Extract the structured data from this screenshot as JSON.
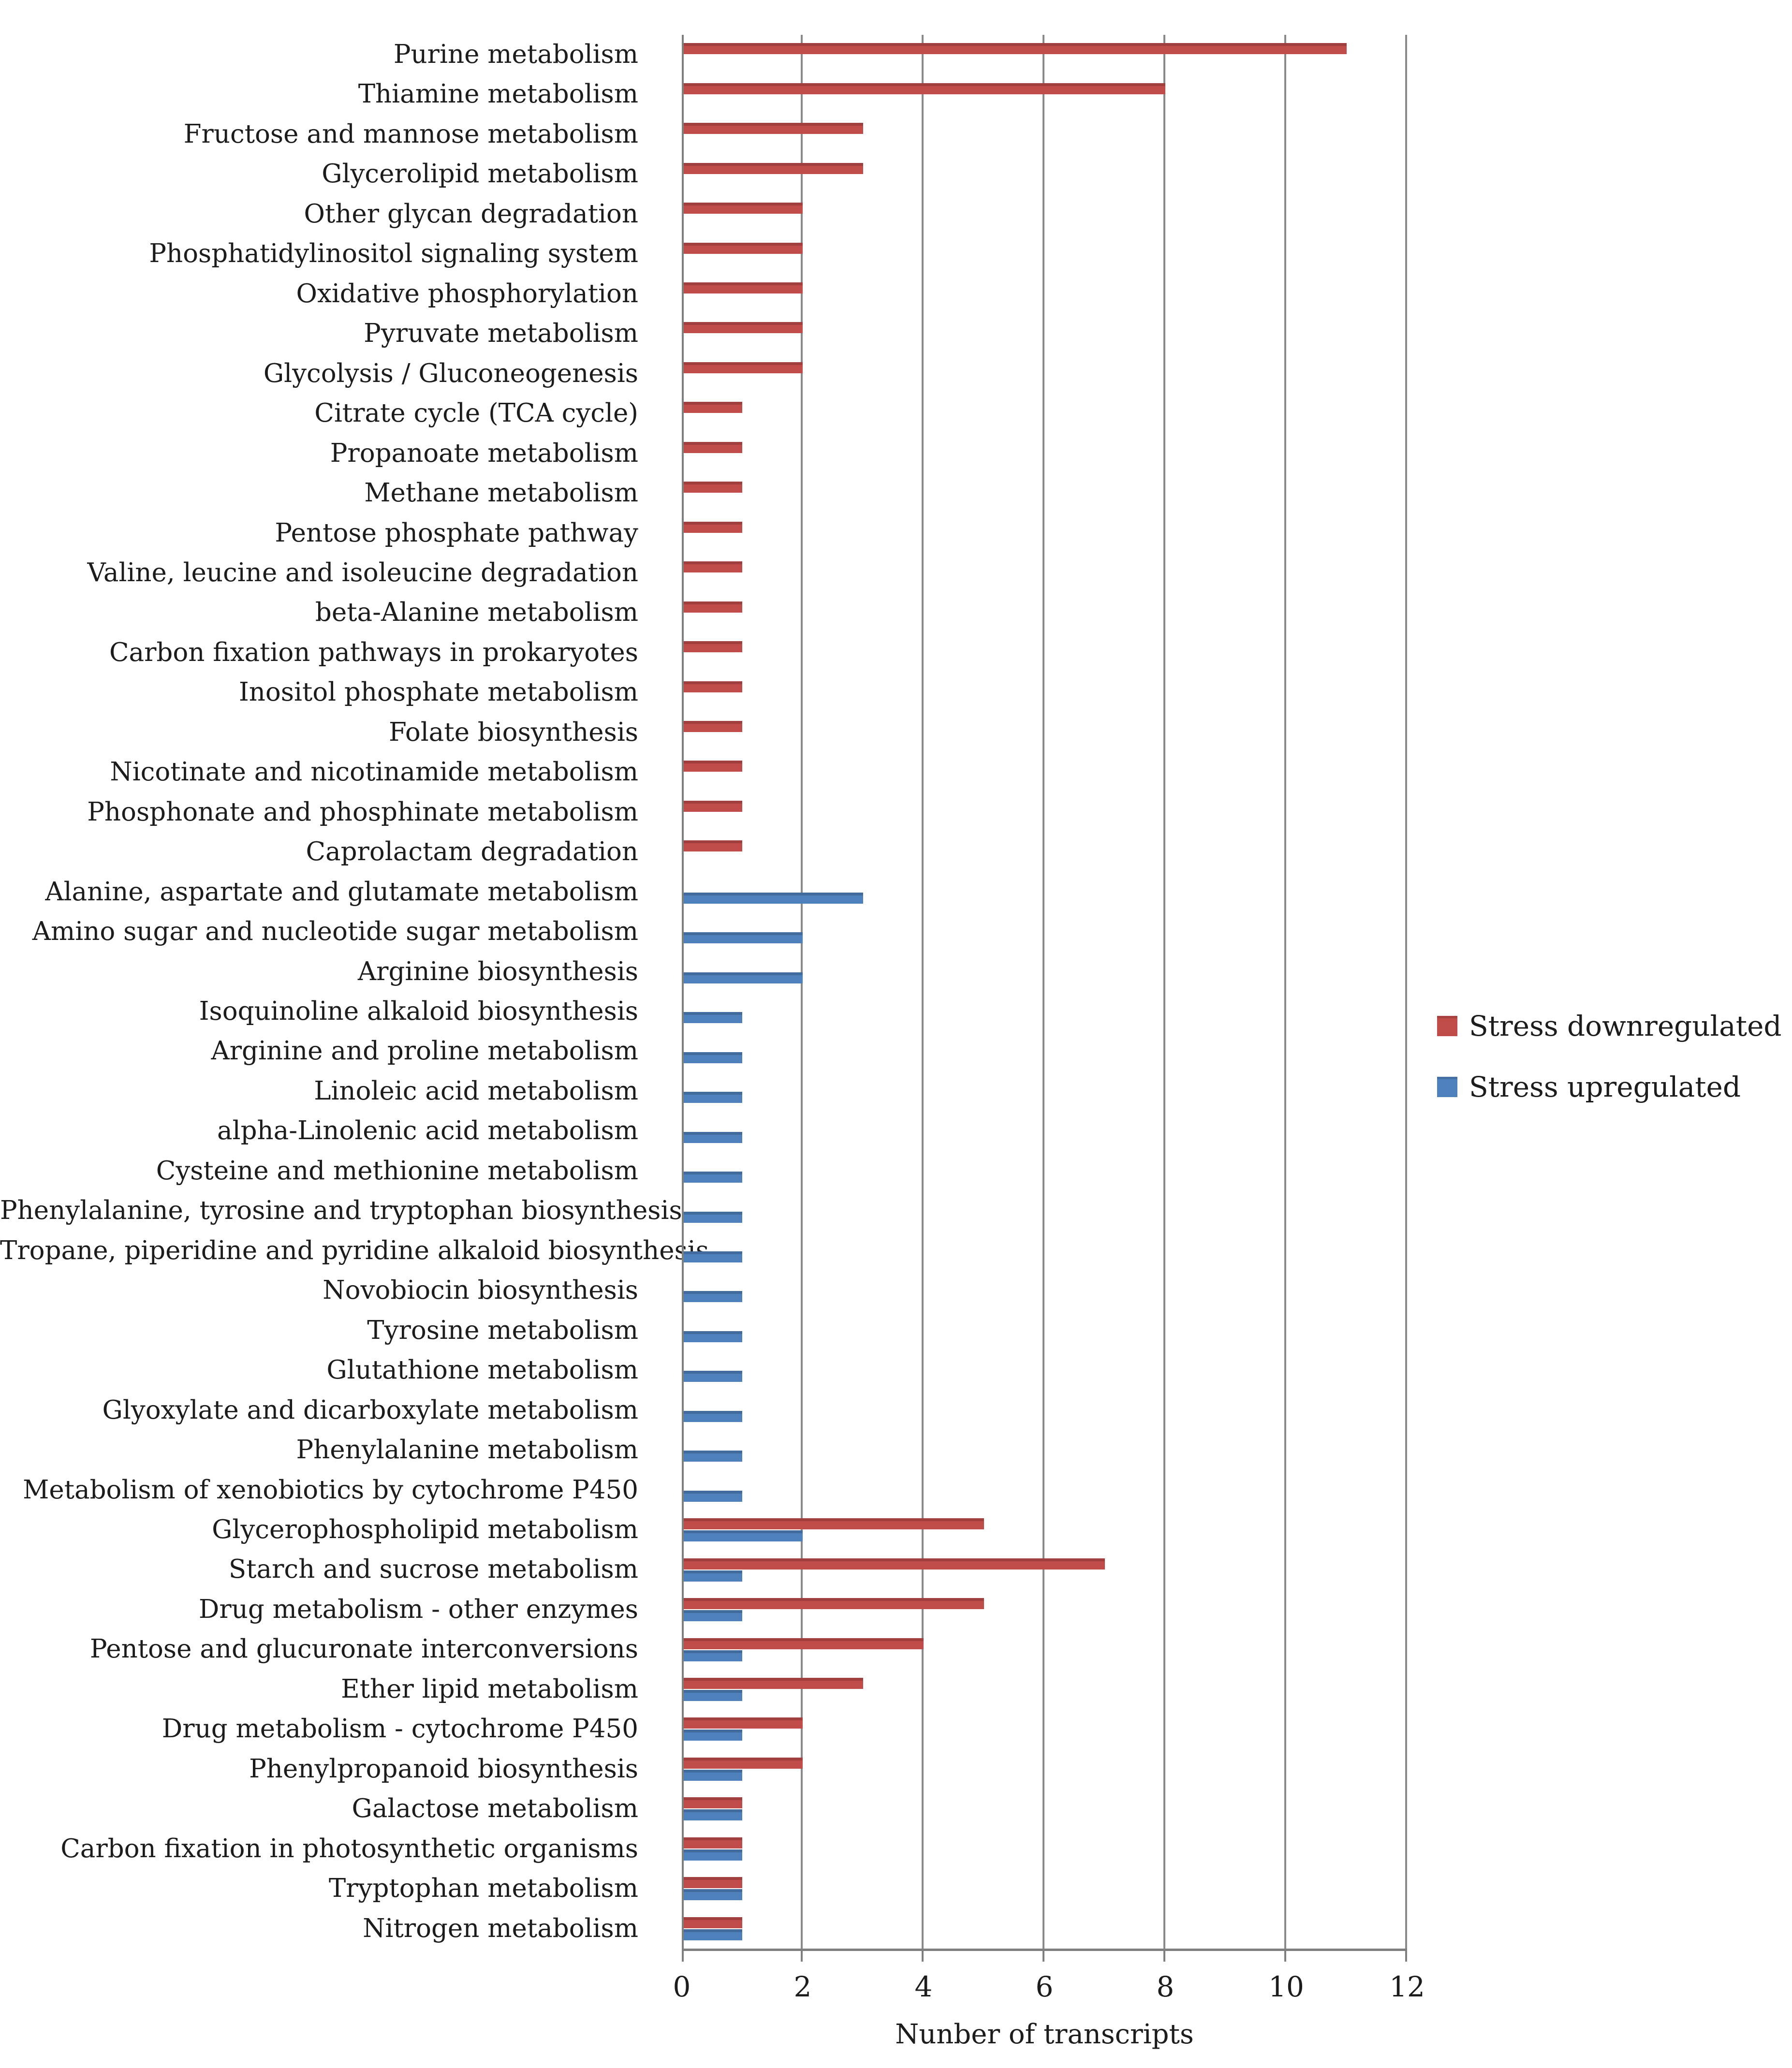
{
  "chart_data": {
    "type": "bar",
    "orientation": "horizontal",
    "title": "",
    "xlabel": "Nunber of transcripts",
    "xlim": [
      0,
      12
    ],
    "xticks": [
      0,
      2,
      4,
      6,
      8,
      10,
      12
    ],
    "grid": "vertical-on",
    "legend_position": "right-middle",
    "legend": [
      {
        "name": "Stress downregulated",
        "color": "#bf4c49"
      },
      {
        "name": "Stress upregulated",
        "color": "#4e80bc"
      }
    ],
    "categories": [
      "Purine metabolism",
      "Thiamine metabolism",
      "Fructose and mannose metabolism",
      "Glycerolipid metabolism",
      "Other glycan degradation",
      "Phosphatidylinositol signaling system",
      "Oxidative phosphorylation",
      "Pyruvate metabolism",
      "Glycolysis / Gluconeogenesis",
      "Citrate cycle (TCA cycle)",
      "Propanoate metabolism",
      "Methane metabolism",
      "Pentose phosphate pathway",
      "Valine, leucine and isoleucine degradation",
      "beta-Alanine metabolism",
      "Carbon fixation pathways in prokaryotes",
      "Inositol phosphate metabolism",
      "Folate biosynthesis",
      "Nicotinate and nicotinamide metabolism",
      "Phosphonate and phosphinate metabolism",
      "Caprolactam degradation",
      "Alanine, aspartate and glutamate metabolism",
      "Amino sugar and nucleotide sugar metabolism",
      "Arginine biosynthesis",
      "Isoquinoline alkaloid biosynthesis",
      "Arginine and proline metabolism",
      "Linoleic acid metabolism",
      "alpha-Linolenic acid metabolism",
      "Cysteine and methionine metabolism",
      "Phenylalanine, tyrosine and tryptophan biosynthesis",
      "Tropane, piperidine and pyridine alkaloid biosynthesis",
      "Novobiocin biosynthesis",
      "Tyrosine metabolism",
      "Glutathione metabolism",
      "Glyoxylate and dicarboxylate metabolism",
      "Phenylalanine metabolism",
      "Metabolism of xenobiotics by cytochrome P450",
      "Glycerophospholipid metabolism",
      "Starch and sucrose metabolism",
      "Drug metabolism - other enzymes",
      "Pentose and glucuronate interconversions",
      "Ether lipid metabolism",
      "Drug metabolism - cytochrome P450",
      "Phenylpropanoid biosynthesis",
      "Galactose metabolism",
      "Carbon fixation in photosynthetic organisms",
      "Tryptophan metabolism",
      "Nitrogen metabolism"
    ],
    "series": [
      {
        "name": "Stress downregulated",
        "color": "#bf4c49",
        "values": [
          11,
          8,
          3,
          3,
          2,
          2,
          2,
          2,
          2,
          1,
          1,
          1,
          1,
          1,
          1,
          1,
          1,
          1,
          1,
          1,
          1,
          0,
          0,
          0,
          0,
          0,
          0,
          0,
          0,
          0,
          0,
          0,
          0,
          0,
          0,
          0,
          0,
          5,
          7,
          5,
          4,
          3,
          2,
          2,
          1,
          1,
          1,
          1
        ]
      },
      {
        "name": "Stress upregulated",
        "color": "#4e80bc",
        "values": [
          0,
          0,
          0,
          0,
          0,
          0,
          0,
          0,
          0,
          0,
          0,
          0,
          0,
          0,
          0,
          0,
          0,
          0,
          0,
          0,
          0,
          3,
          2,
          2,
          1,
          1,
          1,
          1,
          1,
          1,
          1,
          1,
          1,
          1,
          1,
          1,
          1,
          2,
          1,
          1,
          1,
          1,
          1,
          1,
          1,
          1,
          1,
          1
        ]
      }
    ]
  }
}
